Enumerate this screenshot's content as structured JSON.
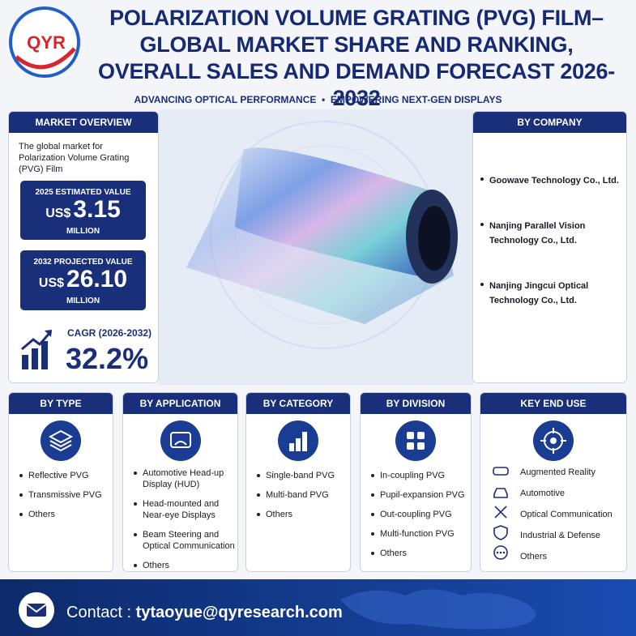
{
  "header": {
    "logo": "QYR",
    "title_lines": [
      "POLARIZATION VOLUME GRATING (PVG) FILM–",
      "GLOBAL MARKET SHARE AND RANKING,",
      "OVERALL SALES AND DEMAND FORECAST 2026-2032"
    ],
    "tagline": "ADVANCING OPTICAL PERFORMANCE  •  EMPOWERING NEXT-GEN DISPLAYS"
  },
  "market_overview": {
    "title": "MARKET OVERVIEW",
    "description": "The global market for Polarization Volume Grating (PVG) Film",
    "estimated": {
      "label": "2025 ESTIMATED VALUE",
      "currency": "US$",
      "value": "3.15",
      "unit": "MILLION"
    },
    "projected": {
      "label": "2032 PROJECTED VALUE",
      "currency": "US$",
      "value": "26.10",
      "unit": "MILLION"
    },
    "cagr": {
      "label": "CAGR (2026-2032)",
      "value": "32.2%"
    }
  },
  "by_company": {
    "title": "BY COMPANY",
    "items": [
      "Goowave Technology Co., Ltd.",
      "Nanjing Parallel Vision Technology Co., Ltd.",
      "Nanjing Jingcui Optical Technology Co., Ltd."
    ]
  },
  "sections": [
    {
      "title": "BY TYPE",
      "items": [
        "Reflective PVG",
        "Transmissive PVG",
        "Others"
      ]
    },
    {
      "title": "BY APPLICATION",
      "items": [
        "Automotive Head-up Display (HUD)",
        "Head-mounted and Near-eye Displays",
        "Beam Steering and Optical Communication",
        "Others"
      ]
    },
    {
      "title": "BY CATEGORY",
      "items": [
        "Single-band PVG",
        "Multi-band PVG",
        "Others"
      ]
    },
    {
      "title": "BY DIVISION",
      "items": [
        "In-coupling PVG",
        "Pupil-expansion PVG",
        "Out-coupling PVG",
        "Multi-function PVG",
        "Others"
      ]
    },
    {
      "title": "KEY END USE",
      "items": [
        "Augmented Reality",
        "Automotive",
        "Optical Communication",
        "Industrial & Defense",
        "Others"
      ]
    }
  ],
  "contact": {
    "label": "Contact :",
    "email": "tytaoyue@qyresearch.com"
  }
}
